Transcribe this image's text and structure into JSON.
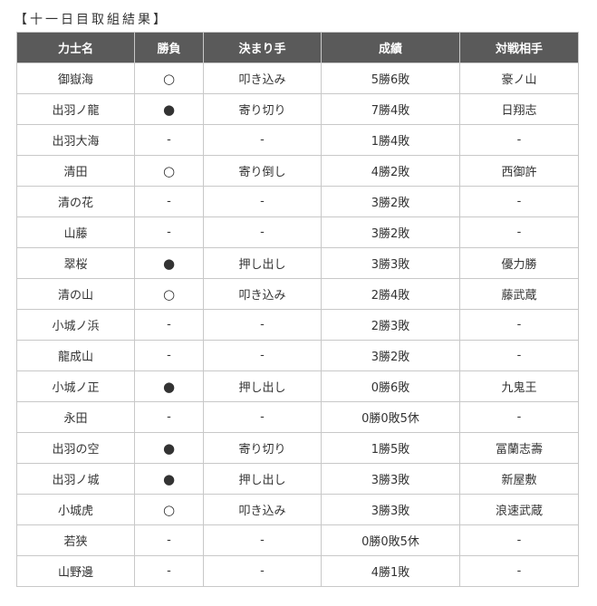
{
  "title": "【十一日目取組結果】",
  "headers": [
    "力士名",
    "勝負",
    "決まり手",
    "成績",
    "対戦相手"
  ],
  "rows": [
    [
      "御嶽海",
      "○",
      "叩き込み",
      "5勝6敗",
      "豪ノ山"
    ],
    [
      "出羽ノ龍",
      "●",
      "寄り切り",
      "7勝4敗",
      "日翔志"
    ],
    [
      "出羽大海",
      "-",
      "-",
      "1勝4敗",
      "-"
    ],
    [
      "清田",
      "○",
      "寄り倒し",
      "4勝2敗",
      "西御許"
    ],
    [
      "清の花",
      "-",
      "-",
      "3勝2敗",
      "-"
    ],
    [
      "山藤",
      "-",
      "-",
      "3勝2敗",
      "-"
    ],
    [
      "翠桜",
      "●",
      "押し出し",
      "3勝3敗",
      "優力勝"
    ],
    [
      "清の山",
      "○",
      "叩き込み",
      "2勝4敗",
      "藤武蔵"
    ],
    [
      "小城ノ浜",
      "-",
      "-",
      "2勝3敗",
      "-"
    ],
    [
      "龍成山",
      "-",
      "-",
      "3勝2敗",
      "-"
    ],
    [
      "小城ノ正",
      "●",
      "押し出し",
      "0勝6敗",
      "九鬼王"
    ],
    [
      "永田",
      "-",
      "-",
      "0勝0敗5休",
      "-"
    ],
    [
      "出羽の空",
      "●",
      "寄り切り",
      "1勝5敗",
      "冨蘭志壽"
    ],
    [
      "出羽ノ城",
      "●",
      "押し出し",
      "3勝3敗",
      "新屋敷"
    ],
    [
      "小城虎",
      "○",
      "叩き込み",
      "3勝3敗",
      "浪速武蔵"
    ],
    [
      "若狭",
      "-",
      "-",
      "0勝0敗5休",
      "-"
    ],
    [
      "山野邊",
      "-",
      "-",
      "4勝1敗",
      "-"
    ]
  ]
}
